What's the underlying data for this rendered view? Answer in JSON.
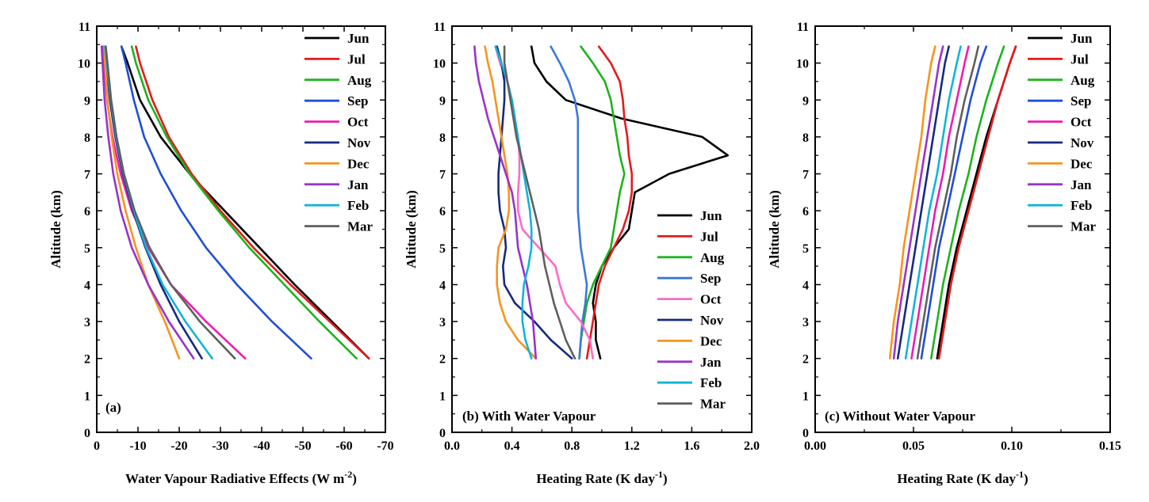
{
  "chart_data": [
    {
      "type": "line",
      "panel_label": "(a)",
      "xlabel": "Water Vapour Radiative Effects (W m",
      "xlabel_sup": "-2",
      "xlabel_end": ")",
      "ylabel": "Altitude (km)",
      "xlim": [
        0,
        -70
      ],
      "ylim": [
        0,
        11
      ],
      "xticks": [
        0,
        -10,
        -20,
        -30,
        -40,
        -50,
        -60,
        -70
      ],
      "xtick_labels": [
        "0",
        "-10",
        "-20",
        "-30",
        "-40",
        "-50",
        "-60",
        "-70"
      ],
      "yticks": [
        0,
        1,
        2,
        3,
        4,
        5,
        6,
        7,
        8,
        9,
        10,
        11
      ],
      "ytick_labels": [
        "0",
        "1",
        "2",
        "3",
        "4",
        "5",
        "6",
        "7",
        "8",
        "9",
        "10",
        "11"
      ],
      "legend_position": "top-right",
      "y": [
        2,
        3,
        4,
        5,
        6,
        7,
        8,
        9,
        10,
        10.45
      ],
      "series": [
        {
          "name": "Jun",
          "color": "#000000",
          "x": [
            -66,
            -57,
            -48,
            -39.5,
            -31,
            -22.5,
            -15.5,
            -10.5,
            -7.5,
            -6
          ]
        },
        {
          "name": "Jul",
          "color": "#e41a1c",
          "x": [
            -66,
            -56.5,
            -47,
            -38,
            -30,
            -23,
            -17.5,
            -13.5,
            -10.5,
            -9.5
          ]
        },
        {
          "name": "Aug",
          "color": "#1db31d",
          "x": [
            -63,
            -54,
            -45.5,
            -37,
            -29.5,
            -22.5,
            -17,
            -12.5,
            -9.5,
            -8.5
          ]
        },
        {
          "name": "Sep",
          "color": "#1f4fd6",
          "x": [
            -52,
            -42.5,
            -34,
            -26.5,
            -20.5,
            -15.5,
            -11.5,
            -9,
            -7,
            -6
          ]
        },
        {
          "name": "Oct",
          "color": "#ee1cb0",
          "x": [
            -36,
            -26.5,
            -18,
            -12.5,
            -8.5,
            -5.8,
            -3.8,
            -2.5,
            -1.8,
            -1.5
          ]
        },
        {
          "name": "Nov",
          "color": "#162a80",
          "x": [
            -25.5,
            -20,
            -15.5,
            -11.8,
            -8.8,
            -6.3,
            -4.5,
            -3.2,
            -2.3,
            -2
          ]
        },
        {
          "name": "Dec",
          "color": "#f7941d",
          "x": [
            -20,
            -16.5,
            -12.5,
            -9.5,
            -7,
            -5,
            -3.6,
            -2.6,
            -2,
            -1.8
          ]
        },
        {
          "name": "Jan",
          "color": "#9932cc",
          "x": [
            -23.5,
            -17.5,
            -12.5,
            -8.5,
            -5.8,
            -4,
            -2.8,
            -1.9,
            -1.4,
            -1.2
          ]
        },
        {
          "name": "Feb",
          "color": "#12b4d8",
          "x": [
            -28,
            -21.5,
            -16,
            -12,
            -9,
            -6.5,
            -4.7,
            -3.4,
            -2.4,
            -2
          ]
        },
        {
          "name": "Mar",
          "color": "#5f5f5f",
          "x": [
            -33.5,
            -25,
            -18,
            -12.8,
            -9.2,
            -6.6,
            -4.8,
            -3.5,
            -2.6,
            -2.2
          ]
        }
      ]
    },
    {
      "type": "line",
      "panel_label": "(b) With Water Vapour",
      "xlabel": "Heating Rate (K day",
      "xlabel_sup": "-1",
      "xlabel_end": ")",
      "ylabel": "Altitude (km)",
      "xlim": [
        0,
        2
      ],
      "ylim": [
        0,
        11
      ],
      "xticks": [
        0,
        0.4,
        0.8,
        1.2,
        1.6,
        2.0
      ],
      "xtick_labels": [
        "0.0",
        "0.4",
        "0.8",
        "1.2",
        "1.6",
        "2.0"
      ],
      "yticks": [
        0,
        1,
        2,
        3,
        4,
        5,
        6,
        7,
        8,
        9,
        10,
        11
      ],
      "ytick_labels": [
        "0",
        "1",
        "2",
        "3",
        "4",
        "5",
        "6",
        "7",
        "8",
        "9",
        "10",
        "11"
      ],
      "legend_position": "middle-right",
      "y": [
        2,
        2.5,
        3,
        3.5,
        4,
        4.5,
        5,
        5.5,
        6,
        6.5,
        7,
        7.5,
        8,
        8.5,
        9,
        9.5,
        10,
        10.45
      ],
      "series": [
        {
          "name": "Jun",
          "color": "#000000",
          "x": [
            0.99,
            0.96,
            0.96,
            0.94,
            0.96,
            1.0,
            1.08,
            1.18,
            1.2,
            1.22,
            1.45,
            1.84,
            1.67,
            1.13,
            0.76,
            0.63,
            0.55,
            0.53
          ]
        },
        {
          "name": "Jul",
          "color": "#e41a1c",
          "x": [
            0.9,
            0.92,
            0.94,
            0.96,
            0.98,
            1.02,
            1.08,
            1.14,
            1.18,
            1.2,
            1.2,
            1.18,
            1.17,
            1.15,
            1.14,
            1.12,
            1.06,
            0.98
          ]
        },
        {
          "name": "Aug",
          "color": "#1db31d",
          "x": [
            0.85,
            0.86,
            0.88,
            0.9,
            0.94,
            1.0,
            1.06,
            1.08,
            1.1,
            1.12,
            1.15,
            1.12,
            1.1,
            1.08,
            1.06,
            1.02,
            0.94,
            0.86
          ]
        },
        {
          "name": "Sep",
          "color": "#3b78db",
          "x": [
            0.85,
            0.86,
            0.87,
            0.89,
            0.9,
            0.88,
            0.86,
            0.85,
            0.84,
            0.84,
            0.84,
            0.84,
            0.84,
            0.84,
            0.82,
            0.78,
            0.72,
            0.66
          ]
        },
        {
          "name": "Oct",
          "color": "#ff69c8",
          "x": [
            0.94,
            0.92,
            0.86,
            0.76,
            0.72,
            0.69,
            0.58,
            0.47,
            0.44,
            0.44,
            0.45,
            0.45,
            0.44,
            0.42,
            0.4,
            0.37,
            0.32,
            0.29
          ]
        },
        {
          "name": "Nov",
          "color": "#162a80",
          "x": [
            0.8,
            0.66,
            0.55,
            0.42,
            0.35,
            0.34,
            0.36,
            0.35,
            0.32,
            0.31,
            0.31,
            0.32,
            0.33,
            0.34,
            0.35,
            0.35,
            0.33,
            0.3
          ]
        },
        {
          "name": "Dec",
          "color": "#f7941d",
          "x": [
            0.56,
            0.44,
            0.36,
            0.32,
            0.3,
            0.3,
            0.31,
            0.36,
            0.38,
            0.38,
            0.37,
            0.35,
            0.33,
            0.31,
            0.29,
            0.27,
            0.24,
            0.22
          ]
        },
        {
          "name": "Jan",
          "color": "#9932cc",
          "x": [
            0.56,
            0.55,
            0.54,
            0.52,
            0.5,
            0.47,
            0.44,
            0.43,
            0.42,
            0.4,
            0.36,
            0.32,
            0.28,
            0.24,
            0.21,
            0.18,
            0.16,
            0.15
          ]
        },
        {
          "name": "Feb",
          "color": "#12b4d8",
          "x": [
            0.53,
            0.49,
            0.47,
            0.47,
            0.48,
            0.51,
            0.53,
            0.53,
            0.52,
            0.5,
            0.48,
            0.46,
            0.44,
            0.42,
            0.4,
            0.37,
            0.33,
            0.29
          ]
        },
        {
          "name": "Mar",
          "color": "#5f5f5f",
          "x": [
            0.82,
            0.76,
            0.72,
            0.68,
            0.65,
            0.62,
            0.6,
            0.58,
            0.55,
            0.52,
            0.49,
            0.46,
            0.43,
            0.41,
            0.39,
            0.37,
            0.35,
            0.35
          ]
        }
      ]
    },
    {
      "type": "line",
      "panel_label": "(c) Without Water Vapour",
      "xlabel": "Heating Rate (K day",
      "xlabel_sup": "-1",
      "xlabel_end": ")",
      "ylabel": "Altitude (km)",
      "xlim": [
        0,
        0.15
      ],
      "ylim": [
        0,
        11
      ],
      "xticks": [
        0,
        0.05,
        0.1,
        0.15
      ],
      "xtick_labels": [
        "0.00",
        "0.05",
        "0.10",
        "0.15"
      ],
      "yticks": [
        0,
        1,
        2,
        3,
        4,
        5,
        6,
        7,
        8,
        9,
        10,
        11
      ],
      "ytick_labels": [
        "0",
        "1",
        "2",
        "3",
        "4",
        "5",
        "6",
        "7",
        "8",
        "9",
        "10",
        "11"
      ],
      "legend_position": "top-right",
      "y": [
        2,
        3,
        4,
        5,
        6,
        7,
        8,
        9,
        10,
        10.45
      ],
      "series": [
        {
          "name": "Jun",
          "color": "#000000",
          "x": [
            0.062,
            0.065,
            0.068,
            0.072,
            0.077,
            0.082,
            0.087,
            0.093,
            0.099,
            0.102
          ]
        },
        {
          "name": "Jul",
          "color": "#e41a1c",
          "x": [
            0.063,
            0.066,
            0.069,
            0.073,
            0.078,
            0.083,
            0.088,
            0.093,
            0.099,
            0.102
          ]
        },
        {
          "name": "Aug",
          "color": "#1db31d",
          "x": [
            0.059,
            0.062,
            0.065,
            0.069,
            0.073,
            0.078,
            0.082,
            0.087,
            0.093,
            0.096
          ]
        },
        {
          "name": "Sep",
          "color": "#1f4fd6",
          "x": [
            0.054,
            0.057,
            0.06,
            0.063,
            0.067,
            0.071,
            0.075,
            0.079,
            0.084,
            0.087
          ]
        },
        {
          "name": "Oct",
          "color": "#ee1cb0",
          "x": [
            0.049,
            0.052,
            0.055,
            0.058,
            0.061,
            0.065,
            0.068,
            0.072,
            0.076,
            0.078
          ]
        },
        {
          "name": "Nov",
          "color": "#162a80",
          "x": [
            0.042,
            0.045,
            0.048,
            0.051,
            0.054,
            0.057,
            0.06,
            0.063,
            0.066,
            0.068
          ]
        },
        {
          "name": "Dec",
          "color": "#f7941d",
          "x": [
            0.038,
            0.04,
            0.043,
            0.045,
            0.048,
            0.051,
            0.054,
            0.056,
            0.059,
            0.061
          ]
        },
        {
          "name": "Jan",
          "color": "#9932cc",
          "x": [
            0.04,
            0.042,
            0.045,
            0.048,
            0.051,
            0.054,
            0.057,
            0.06,
            0.063,
            0.065
          ]
        },
        {
          "name": "Feb",
          "color": "#12b4d8",
          "x": [
            0.046,
            0.049,
            0.052,
            0.055,
            0.058,
            0.062,
            0.065,
            0.068,
            0.072,
            0.074
          ]
        },
        {
          "name": "Mar",
          "color": "#5f5f5f",
          "x": [
            0.052,
            0.055,
            0.058,
            0.061,
            0.065,
            0.069,
            0.072,
            0.076,
            0.081,
            0.083
          ]
        }
      ]
    }
  ]
}
